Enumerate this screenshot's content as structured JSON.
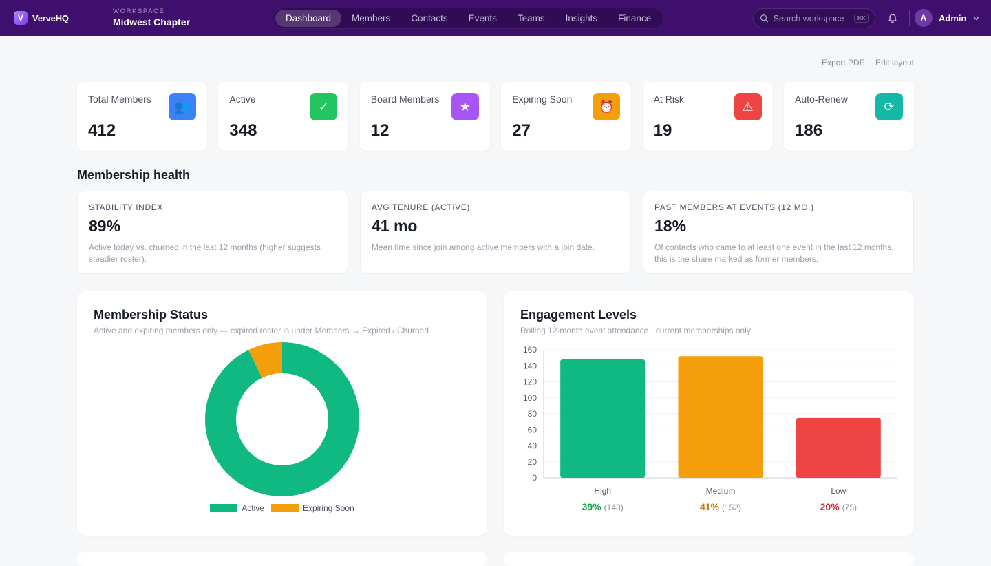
{
  "brand": {
    "name": "VerveHQ",
    "logo_letter": "V"
  },
  "workspace": {
    "label": "WORKSPACE",
    "name": "Midwest Chapter"
  },
  "nav": {
    "tabs": [
      {
        "label": "Dashboard",
        "active": true
      },
      {
        "label": "Members",
        "active": false
      },
      {
        "label": "Contacts",
        "active": false
      },
      {
        "label": "Events",
        "active": false
      },
      {
        "label": "Teams",
        "active": false
      },
      {
        "label": "Insights",
        "active": false
      },
      {
        "label": "Finance",
        "active": false
      }
    ]
  },
  "search": {
    "placeholder": "Search workspace",
    "shortcut": "⌘K"
  },
  "user": {
    "initial": "A",
    "name": "Admin"
  },
  "toolbar": {
    "export_label": "Export PDF",
    "edit_label": "Edit layout"
  },
  "kpis": [
    {
      "label": "Total Members",
      "value": "412",
      "icon": "members-icon",
      "glyph": "👥",
      "color": "#3b82f6"
    },
    {
      "label": "Active",
      "value": "348",
      "icon": "checkmark-icon",
      "glyph": "✓",
      "color": "#22c55e"
    },
    {
      "label": "Board Members",
      "value": "12",
      "icon": "star-icon",
      "glyph": "★",
      "color": "#a855f7"
    },
    {
      "label": "Expiring Soon",
      "value": "27",
      "icon": "alarm-clock-icon",
      "glyph": "⏰",
      "color": "#f59e0b"
    },
    {
      "label": "At Risk",
      "value": "19",
      "icon": "warning-icon",
      "glyph": "⚠",
      "color": "#ef4444"
    },
    {
      "label": "Auto-Renew",
      "value": "186",
      "icon": "renew-icon",
      "glyph": "⟳",
      "color": "#14b8a6"
    }
  ],
  "health": {
    "title": "Membership health",
    "cards": [
      {
        "label": "STABILITY INDEX",
        "value": "89%",
        "desc": "Active today vs. churned in the last 12 months (higher suggests steadier roster)."
      },
      {
        "label": "AVG TENURE (ACTIVE)",
        "value": "41 mo",
        "desc": "Mean time since join among active members with a join date."
      },
      {
        "label": "PAST MEMBERS AT EVENTS (12 MO.)",
        "value": "18%",
        "desc": "Of contacts who came to at least one event in the last 12 months, this is the share marked as former members."
      }
    ]
  },
  "status_panel": {
    "title": "Membership Status",
    "subtitle": "Active and expiring members only — expired roster is under Members → Expired / Churned"
  },
  "engagement_panel": {
    "title": "Engagement Levels",
    "subtitle": "Rolling 12-month event attendance · current memberships only",
    "summary": [
      {
        "pct": "39%",
        "count": "(148)",
        "color": "#16a34a"
      },
      {
        "pct": "41%",
        "count": "(152)",
        "color": "#d97706"
      },
      {
        "pct": "20%",
        "count": "(75)",
        "color": "#dc2626"
      }
    ]
  },
  "chart_data": [
    {
      "type": "pie",
      "variant": "donut",
      "categories": [
        "Active",
        "Expiring Soon"
      ],
      "values": [
        348,
        27
      ],
      "colors": [
        "#10b981",
        "#f59e0b"
      ],
      "legend": "bottom"
    },
    {
      "type": "bar",
      "categories": [
        "High",
        "Medium",
        "Low"
      ],
      "values": [
        148,
        152,
        75
      ],
      "colors": [
        "#10b981",
        "#f59e0b",
        "#ef4444"
      ],
      "ylim": [
        0,
        160
      ],
      "yticks": [
        0,
        20,
        40,
        60,
        80,
        100,
        120,
        140,
        160
      ],
      "grid": true
    }
  ]
}
